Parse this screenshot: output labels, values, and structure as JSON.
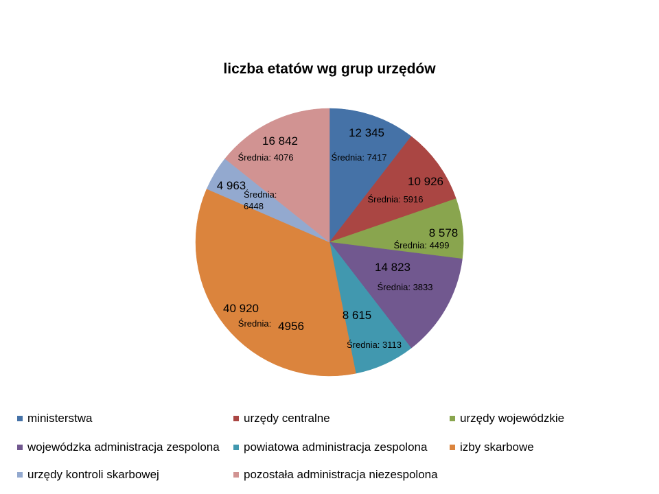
{
  "chart_data": {
    "type": "pie",
    "title": "liczba etatów wg grup urzędów",
    "categories": [
      "ministerstwa",
      "urzędy centralne",
      "urzędy wojewódzkie",
      "wojewódzka administracja zespolona",
      "powiatowa administracja zespolona",
      "izby skarbowe",
      "urzędy kontroli skarbowej",
      "pozostała administracja niezespolona"
    ],
    "values": [
      12345,
      10926,
      8578,
      14823,
      8615,
      40920,
      4963,
      16842
    ],
    "data_labels": [
      "12 345",
      "10 926",
      "8 578",
      "14 823",
      "8 615",
      "40 920",
      "4 963",
      "16 842"
    ],
    "average_label": "Średnia:",
    "averages": [
      7417,
      5916,
      4499,
      3833,
      3113,
      4956,
      6448,
      4076
    ],
    "colors": [
      "#4572A7",
      "#AA4643",
      "#89A54E",
      "#71588F",
      "#4198AF",
      "#DB843D",
      "#93A9CF",
      "#D19392"
    ],
    "legend_position": "bottom"
  }
}
